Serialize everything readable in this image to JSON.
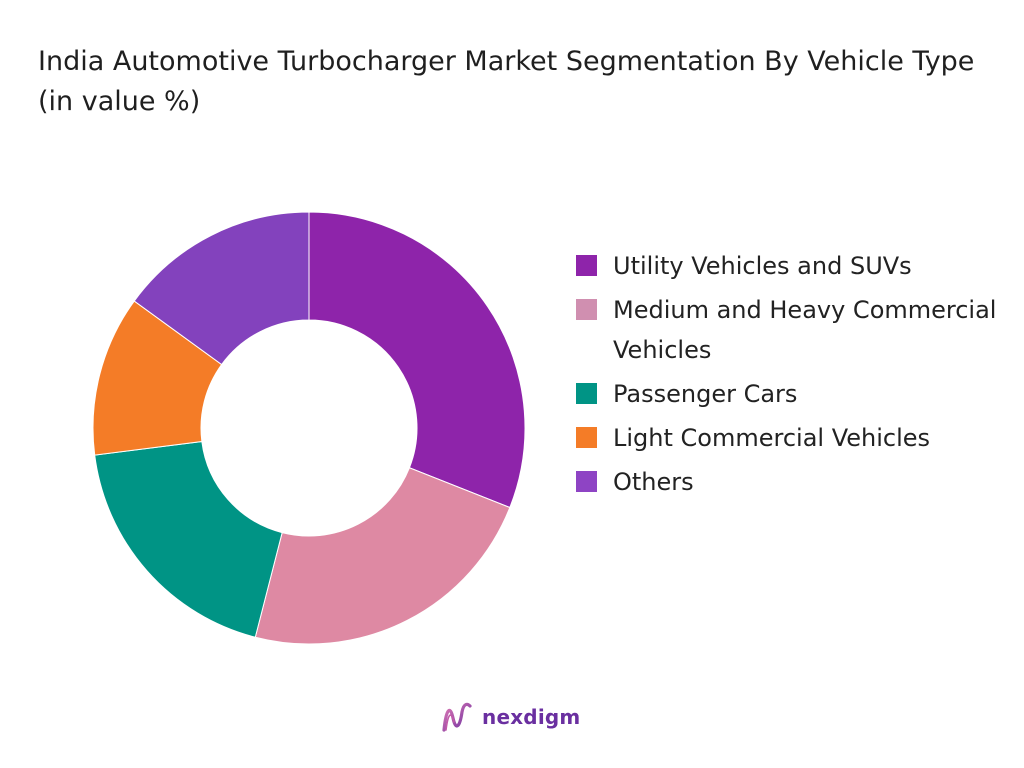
{
  "title": "India Automotive Turbocharger Market Segmentation By Vehicle Type (in value %)",
  "brand": {
    "name": "nexdigm"
  },
  "chart_data": {
    "type": "pie",
    "variant": "donut",
    "title": "India Automotive Turbocharger Market Segmentation By Vehicle Type (in value %)",
    "legend_position": "right",
    "categories": [
      "Utility Vehicles and SUVs",
      "Medium and Heavy Commercial Vehicles",
      "Passenger Cars",
      "Light Commercial Vehicles",
      "Others"
    ],
    "values": [
      31,
      23,
      19,
      12,
      15
    ],
    "segment_colors": [
      "#8e24aa",
      "#de89a3",
      "#009485",
      "#f47c27",
      "#8342bd"
    ],
    "legend_colors": [
      "#8e24aa",
      "#d08fb0",
      "#009485",
      "#f47c27",
      "#8e44c4"
    ],
    "legend_order": [
      0,
      1,
      4,
      2,
      3
    ]
  }
}
